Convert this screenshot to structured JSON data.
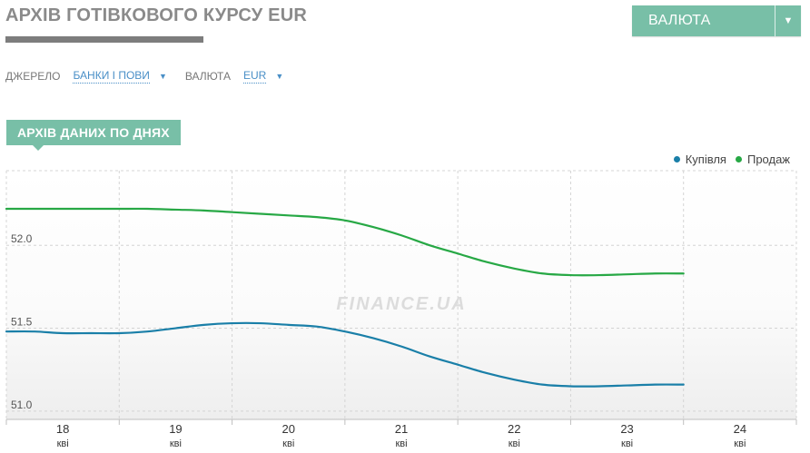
{
  "header": {
    "title": "АРХІВ ГОТІВКОВОГО КУРСУ EUR",
    "currency_button_label": "ВАЛЮТА",
    "currency_button_arrow": "▼"
  },
  "filters": {
    "source_label": "ДЖЕРЕЛО",
    "source_value": "БАНКИ І ПОВИ",
    "currency_label": "ВАЛЮТА",
    "currency_value": "EUR",
    "caret": "▼"
  },
  "section": {
    "tab_label": "АРХІВ ДАНИХ ПО ДНЯХ"
  },
  "watermark": "FINANCE.UA",
  "colors": {
    "accent": "#78bfa7",
    "buy": "#1a7fa8",
    "sell": "#27a845",
    "link": "#4a8fc7"
  },
  "chart_data": {
    "type": "line",
    "x": [
      17.5,
      17.75,
      18,
      18.25,
      18.5,
      18.75,
      19,
      19.25,
      19.5,
      19.75,
      20,
      20.25,
      20.5,
      20.75,
      21,
      21.25,
      21.5,
      21.75,
      22,
      22.25,
      22.5,
      22.75,
      23,
      23.25,
      23.5
    ],
    "categories": [
      {
        "day": "18",
        "month": "кві"
      },
      {
        "day": "19",
        "month": "кві"
      },
      {
        "day": "20",
        "month": "кві"
      },
      {
        "day": "21",
        "month": "кві"
      },
      {
        "day": "22",
        "month": "кві"
      },
      {
        "day": "23",
        "month": "кві"
      },
      {
        "day": "24",
        "month": "кві"
      }
    ],
    "series": [
      {
        "name": "Купівля",
        "color": "#1a7fa8",
        "values": [
          51.48,
          51.48,
          51.47,
          51.47,
          51.47,
          51.48,
          51.5,
          51.52,
          51.53,
          51.53,
          51.52,
          51.51,
          51.48,
          51.44,
          51.39,
          51.33,
          51.28,
          51.23,
          51.19,
          51.16,
          51.15,
          51.15,
          51.155,
          51.16,
          51.16
        ]
      },
      {
        "name": "Продаж",
        "color": "#27a845",
        "values": [
          52.22,
          52.22,
          52.22,
          52.22,
          52.22,
          52.22,
          52.215,
          52.21,
          52.2,
          52.19,
          52.18,
          52.17,
          52.15,
          52.11,
          52.06,
          52.0,
          51.95,
          51.9,
          51.86,
          51.83,
          51.82,
          51.82,
          51.825,
          51.83,
          51.83
        ]
      }
    ],
    "yticks": [
      51.0,
      51.5,
      52.0
    ],
    "ylim": [
      50.95,
      52.45
    ],
    "xlim": [
      17.5,
      24.5
    ],
    "grid": true,
    "legend_position": "top-right"
  }
}
